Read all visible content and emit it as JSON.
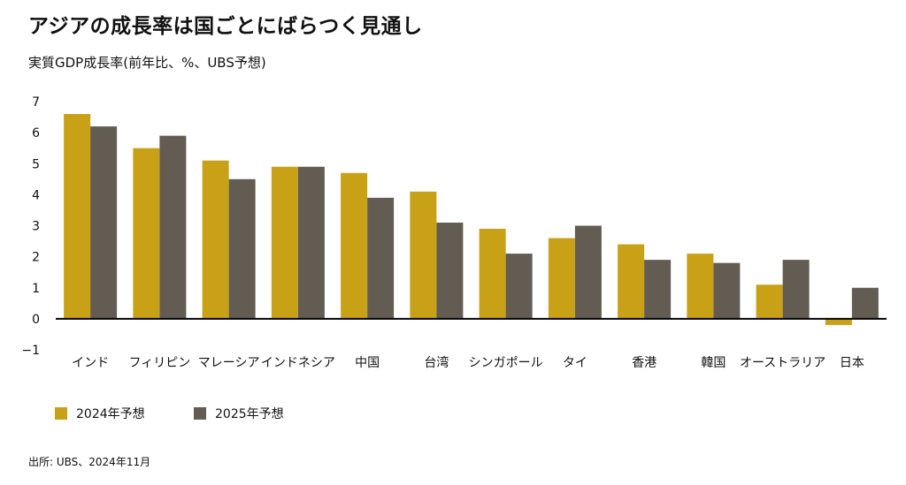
{
  "title": "アジアの成長率は国ごとにばらつく見通し",
  "subtitle": "実質GDP成長率(前年比、%、UBS予想)",
  "source": "出所: UBS、2024年11月",
  "colors": {
    "series_2024": "#c9a117",
    "series_2025": "#625c52",
    "zero_line": "#000000"
  },
  "chart_data": {
    "type": "bar",
    "categories": [
      "インド",
      "フィリピン",
      "マレーシア",
      "インドネシア",
      "中国",
      "台湾",
      "シンガポール",
      "タイ",
      "香港",
      "韓国",
      "オーストラリア",
      "日本"
    ],
    "series": [
      {
        "name": "2024年予想",
        "values": [
          6.6,
          5.5,
          5.1,
          4.9,
          4.7,
          4.1,
          2.9,
          2.6,
          2.4,
          2.1,
          1.1,
          -0.2
        ]
      },
      {
        "name": "2025年予想",
        "values": [
          6.2,
          5.9,
          4.5,
          4.9,
          3.9,
          3.1,
          2.1,
          3.0,
          1.9,
          1.8,
          1.9,
          1.0
        ]
      }
    ],
    "ylim": [
      -1,
      7
    ],
    "yticks": [
      "7",
      "6",
      "5",
      "4",
      "3",
      "2",
      "1",
      "0",
      "−1"
    ],
    "ytick_values": [
      7,
      6,
      5,
      4,
      3,
      2,
      1,
      0,
      -1
    ],
    "grid": false,
    "legend_position": "bottom-left"
  }
}
